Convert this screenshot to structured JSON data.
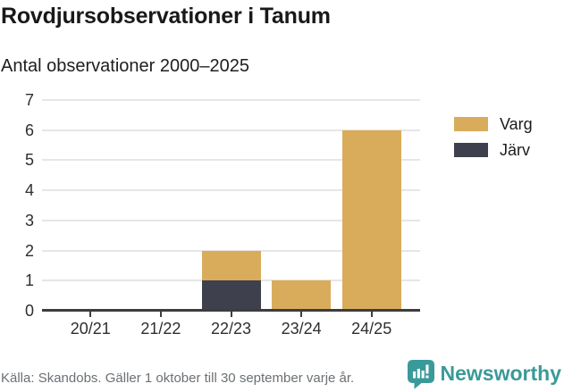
{
  "header": {
    "title": "Rovdjursobservationer i Tanum",
    "subtitle": "Antal observationer 2000–2025"
  },
  "chart_data": {
    "type": "bar",
    "stacked": true,
    "title": "Rovdjursobservationer i Tanum",
    "subtitle": "Antal observationer 2000–2025",
    "categories": [
      "20/21",
      "21/22",
      "22/23",
      "23/24",
      "24/25"
    ],
    "series": [
      {
        "name": "Varg",
        "color": "#d9ac5b",
        "values": [
          0,
          0,
          1,
          1,
          6
        ]
      },
      {
        "name": "Järv",
        "color": "#3f404e",
        "values": [
          0,
          0,
          1,
          0,
          0
        ]
      }
    ],
    "stack_bottom_to_top": [
      "Järv",
      "Varg"
    ],
    "xlabel": "",
    "ylabel": "",
    "ylim": [
      0,
      7
    ],
    "yticks": [
      0,
      1,
      2,
      3,
      4,
      5,
      6,
      7
    ],
    "grid": "horizontal",
    "legend_position": "right",
    "legend": [
      "Varg",
      "Järv"
    ]
  },
  "colors": {
    "varg": "#d9ac5b",
    "jarv": "#3f404e",
    "gridline": "#e6e6e6",
    "axis": "#3d3d3d",
    "brand_teal": "#399a99",
    "footer_text": "#6b7074"
  },
  "footer": {
    "source": "Källa: Skandobs. Gäller 1 oktober till 30 september varje år.",
    "brand": "Newsworthy"
  }
}
